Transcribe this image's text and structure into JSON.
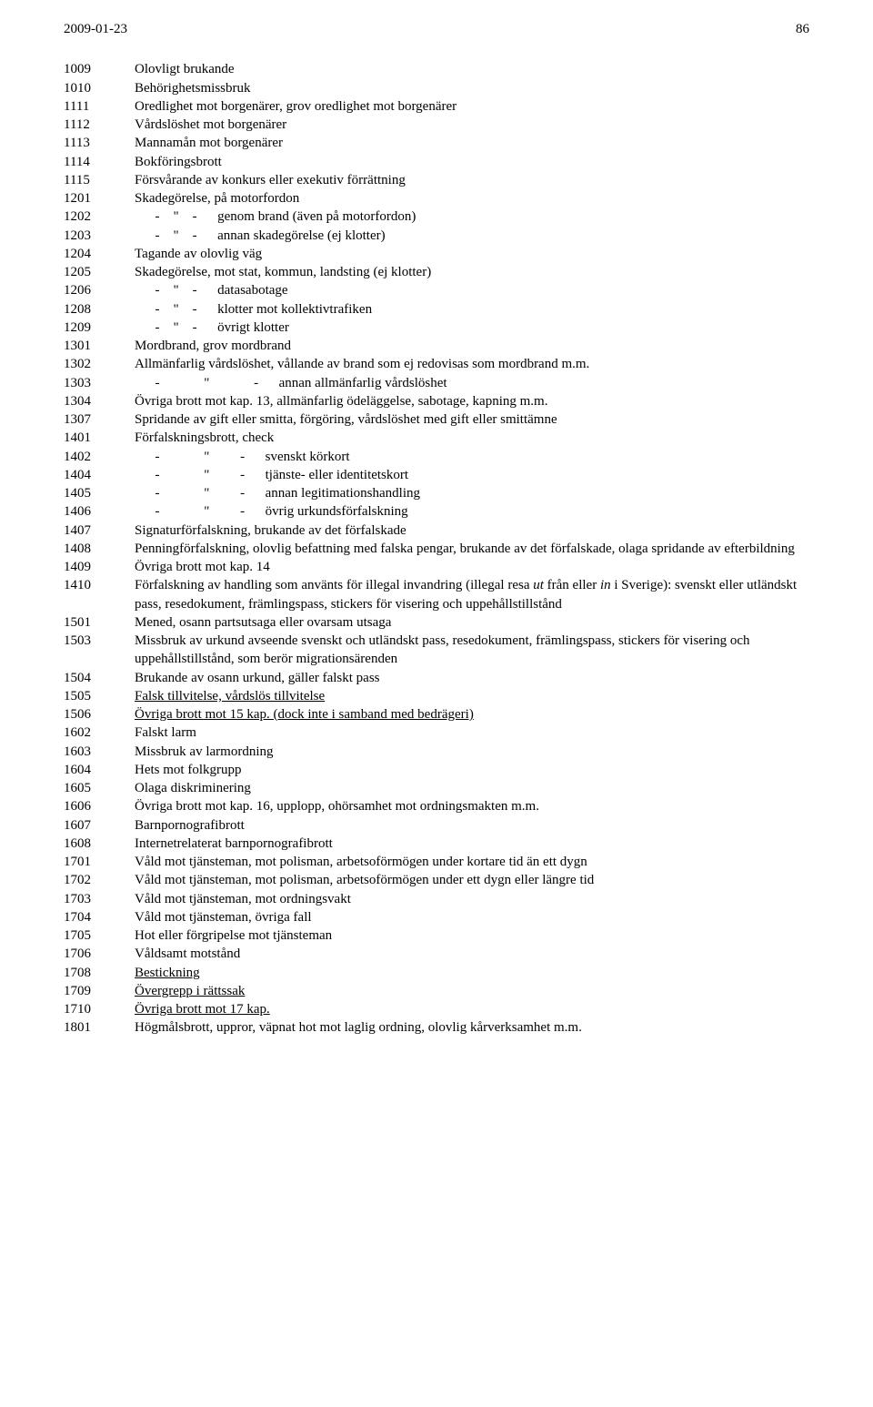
{
  "header": {
    "date": "2009-01-23",
    "page": "86"
  },
  "rows": [
    {
      "code": "1009",
      "desc": [
        {
          "t": "Olovligt brukande"
        }
      ]
    },
    {
      "code": "1010",
      "desc": [
        {
          "t": "Behörighetsmissbruk"
        }
      ]
    },
    {
      "code": "1111",
      "desc": [
        {
          "t": "Oredlighet mot borgenärer, grov oredlighet mot borgenärer"
        }
      ]
    },
    {
      "code": "1112",
      "desc": [
        {
          "t": "Vårdslöshet mot borgenärer"
        }
      ]
    },
    {
      "code": "1113",
      "desc": [
        {
          "t": "Mannamån mot borgenärer"
        }
      ]
    },
    {
      "code": "1114",
      "desc": [
        {
          "t": "Bokföringsbrott"
        }
      ]
    },
    {
      "code": "1115",
      "desc": [
        {
          "t": "Försvårande av konkurs eller exekutiv förrättning"
        }
      ]
    },
    {
      "code": "1201",
      "desc": [
        {
          "t": "Skadegörelse, på motorfordon"
        }
      ]
    },
    {
      "code": "1202",
      "desc": [
        {
          "t": "      -    \"    -      genom brand (även på motorfordon)"
        }
      ]
    },
    {
      "code": "1203",
      "desc": [
        {
          "t": "      -    \"    -      annan skadegörelse (ej klotter)"
        }
      ]
    },
    {
      "code": "1204",
      "desc": [
        {
          "t": "Tagande av olovlig väg"
        }
      ]
    },
    {
      "code": "1205",
      "desc": [
        {
          "t": "Skadegörelse, mot stat, kommun, landsting (ej klotter)"
        }
      ]
    },
    {
      "code": "1206",
      "desc": [
        {
          "t": "      -    \"    -      datasabotage"
        }
      ]
    },
    {
      "code": "1208",
      "desc": [
        {
          "t": "      -    \"    -      klotter mot kollektivtrafiken"
        }
      ]
    },
    {
      "code": "1209",
      "desc": [
        {
          "t": "      -    \"    -      övrigt klotter"
        }
      ]
    },
    {
      "code": "1301",
      "desc": [
        {
          "t": "Mordbrand, grov mordbrand"
        }
      ]
    },
    {
      "code": "1302",
      "desc": [
        {
          "t": "Allmänfarlig vårdslöshet, vållande av brand som ej redovisas som mordbrand m.m."
        }
      ]
    },
    {
      "code": "1303",
      "desc": [
        {
          "t": "      -             \"             -      annan allmänfarlig vårdslöshet"
        }
      ]
    },
    {
      "code": "1304",
      "desc": [
        {
          "t": "Övriga brott mot kap. 13, allmänfarlig ödeläggelse, sabotage, kapning m.m."
        }
      ]
    },
    {
      "code": "1307",
      "desc": [
        {
          "t": "Spridande av gift eller smitta, förgöring, vårdslöshet med gift eller smittämne"
        }
      ]
    },
    {
      "code": "1401",
      "desc": [
        {
          "t": "Förfalskningsbrott, check"
        }
      ]
    },
    {
      "code": "1402",
      "desc": [
        {
          "t": "      -             \"         -      svenskt körkort"
        }
      ]
    },
    {
      "code": "1404",
      "desc": [
        {
          "t": "      -             \"         -      tjänste- eller identitetskort"
        }
      ]
    },
    {
      "code": "1405",
      "desc": [
        {
          "t": "      -             \"         -      annan legitimationshandling"
        }
      ]
    },
    {
      "code": "1406",
      "desc": [
        {
          "t": "      -             \"         -      övrig urkundsförfalskning"
        }
      ]
    },
    {
      "code": "1407",
      "desc": [
        {
          "t": "Signaturförfalskning, brukande av det förfalskade"
        }
      ]
    },
    {
      "code": "1408",
      "desc": [
        {
          "t": "Penningförfalskning, olovlig befattning med falska pengar, brukande av det förfalskade, olaga spridande av efterbildning"
        }
      ]
    },
    {
      "code": "1409",
      "desc": [
        {
          "t": "Övriga brott mot kap. 14"
        }
      ]
    },
    {
      "code": "1410",
      "desc": [
        {
          "t": "Förfalskning av handling som använts för illegal invandring (illegal resa "
        },
        {
          "t": "ut",
          "i": true
        },
        {
          "t": " från eller "
        },
        {
          "t": "in",
          "i": true
        },
        {
          "t": " i Sverige): svenskt eller utländskt pass, resedokument, främlingspass, stickers för visering och uppehållstillstånd"
        }
      ]
    },
    {
      "code": "1501",
      "desc": [
        {
          "t": "Mened, osann partsutsaga eller ovarsam utsaga"
        }
      ]
    },
    {
      "code": "1503",
      "desc": [
        {
          "t": "Missbruk av urkund avseende svenskt och utländskt pass, resedokument, främlingspass, stickers för visering och uppehållstillstånd, som berör migrationsärenden"
        }
      ]
    },
    {
      "code": "1504",
      "desc": [
        {
          "t": "Brukande av osann urkund, gäller falskt pass"
        }
      ]
    },
    {
      "code": "1505",
      "desc": [
        {
          "t": "Falsk tillvitelse, vårdslös tillvitelse",
          "u": true
        }
      ]
    },
    {
      "code": "1506",
      "desc": [
        {
          "t": "Övriga brott mot 15 kap. (dock inte i samband med bedrägeri)",
          "u": true
        }
      ]
    },
    {
      "code": "1602",
      "desc": [
        {
          "t": "Falskt larm"
        }
      ]
    },
    {
      "code": "1603",
      "desc": [
        {
          "t": "Missbruk av larmordning"
        }
      ]
    },
    {
      "code": "1604",
      "desc": [
        {
          "t": "Hets mot folkgrupp"
        }
      ]
    },
    {
      "code": "1605",
      "desc": [
        {
          "t": "Olaga diskriminering"
        }
      ]
    },
    {
      "code": "1606",
      "desc": [
        {
          "t": "Övriga brott mot kap. 16, upplopp, ohörsamhet mot ordningsmakten m.m."
        }
      ]
    },
    {
      "code": "1607",
      "desc": [
        {
          "t": "Barnpornografibrott"
        }
      ]
    },
    {
      "code": "1608",
      "desc": [
        {
          "t": "Internetrelaterat barnpornografibrott"
        }
      ]
    },
    {
      "code": "1701",
      "desc": [
        {
          "t": "Våld mot tjänsteman, mot polisman, arbetsoförmögen under kortare tid än ett dygn"
        }
      ]
    },
    {
      "code": "1702",
      "desc": [
        {
          "t": "Våld mot tjänsteman, mot polisman, arbetsoförmögen under ett dygn eller längre tid"
        }
      ]
    },
    {
      "code": "1703",
      "desc": [
        {
          "t": "Våld mot tjänsteman, mot ordningsvakt"
        }
      ]
    },
    {
      "code": "1704",
      "desc": [
        {
          "t": "Våld mot tjänsteman, övriga fall"
        }
      ]
    },
    {
      "code": "1705",
      "desc": [
        {
          "t": "Hot eller förgripelse mot tjänsteman"
        }
      ]
    },
    {
      "code": "1706",
      "desc": [
        {
          "t": "Våldsamt motstånd"
        }
      ]
    },
    {
      "code": "1708",
      "desc": [
        {
          "t": "Bestickning",
          "u": true
        }
      ]
    },
    {
      "code": "1709",
      "desc": [
        {
          "t": "Övergrepp i rättssak",
          "u": true
        }
      ]
    },
    {
      "code": "1710",
      "desc": [
        {
          "t": "Övriga brott mot 17 kap.",
          "u": true
        }
      ]
    },
    {
      "code": "1801",
      "desc": [
        {
          "t": "Högmålsbrott, uppror, väpnat hot mot laglig ordning, olovlig kårverksamhet m.m."
        }
      ]
    }
  ]
}
